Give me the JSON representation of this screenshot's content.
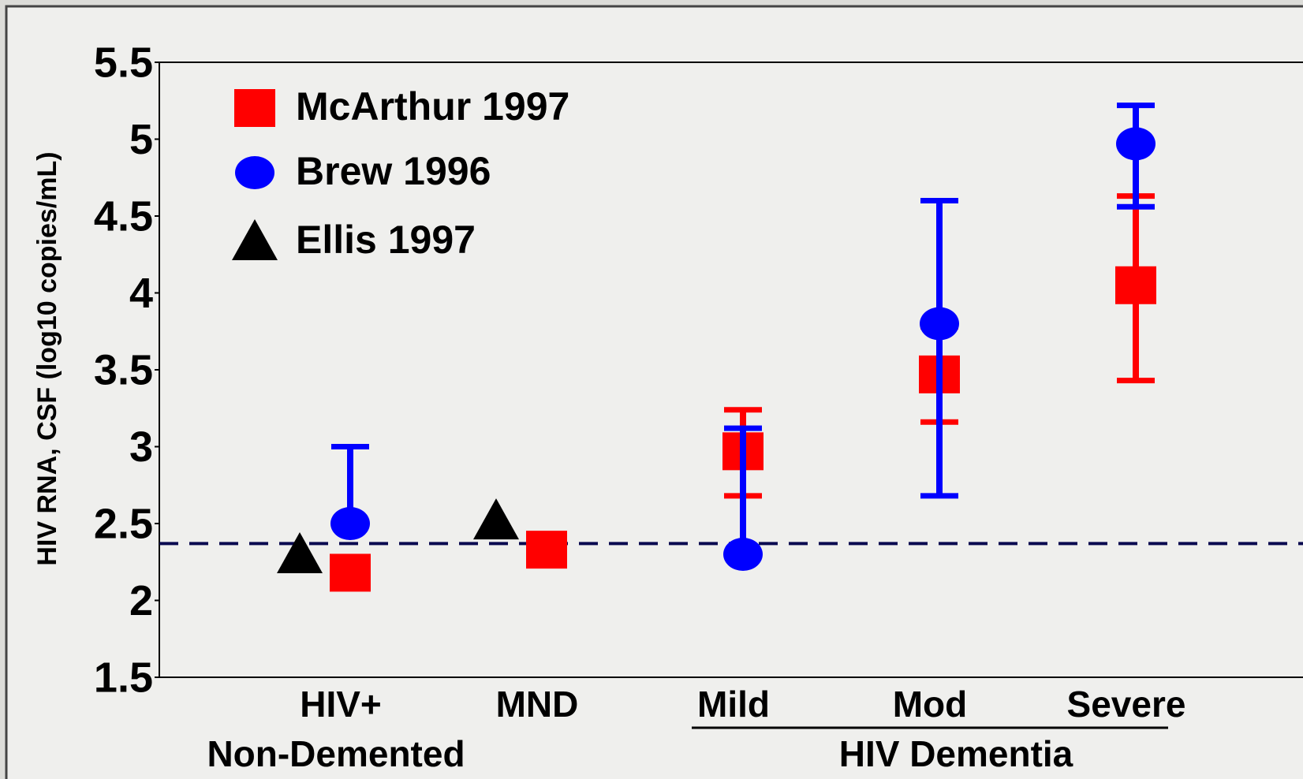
{
  "chart_data": {
    "type": "errorbar",
    "y_label": "HIV RNA, CSF (log10 copies/mL)",
    "categories": [
      "HIV+",
      "MND",
      "Mild",
      "Mod",
      "Severe"
    ],
    "groups": [
      {
        "label": "Non-Demented"
      },
      {
        "label": "HIV Dementia"
      }
    ],
    "series": [
      {
        "name": "McArthur 1997",
        "color": "#ff0000",
        "marker": "square",
        "values": [
          2.18,
          2.33,
          2.97,
          3.47,
          4.05
        ],
        "error_upper": [
          null,
          null,
          0.27,
          0.31,
          0.58
        ],
        "error_lower": [
          null,
          null,
          0.29,
          0.31,
          0.62
        ]
      },
      {
        "name": "Brew 1996",
        "color": "#0000ff",
        "marker": "circle",
        "values": [
          2.5,
          null,
          2.3,
          3.8,
          4.97
        ],
        "error_upper": [
          0.5,
          null,
          0.82,
          0.8,
          0.25
        ],
        "error_lower": [
          null,
          null,
          null,
          1.12,
          0.41
        ]
      },
      {
        "name": "Ellis 1997",
        "color": "#000000",
        "marker": "triangle",
        "values": [
          2.3,
          2.52,
          null,
          null,
          null
        ],
        "error_upper": [
          null,
          null,
          null,
          null,
          null
        ],
        "error_lower": [
          null,
          null,
          null,
          null,
          null
        ]
      }
    ],
    "reference_line": 2.37,
    "ylim": [
      1.5,
      5.5
    ],
    "yticks": [
      1.5,
      2,
      2.5,
      3,
      3.5,
      4,
      4.5,
      5,
      5.5
    ],
    "legend": "upper left"
  }
}
